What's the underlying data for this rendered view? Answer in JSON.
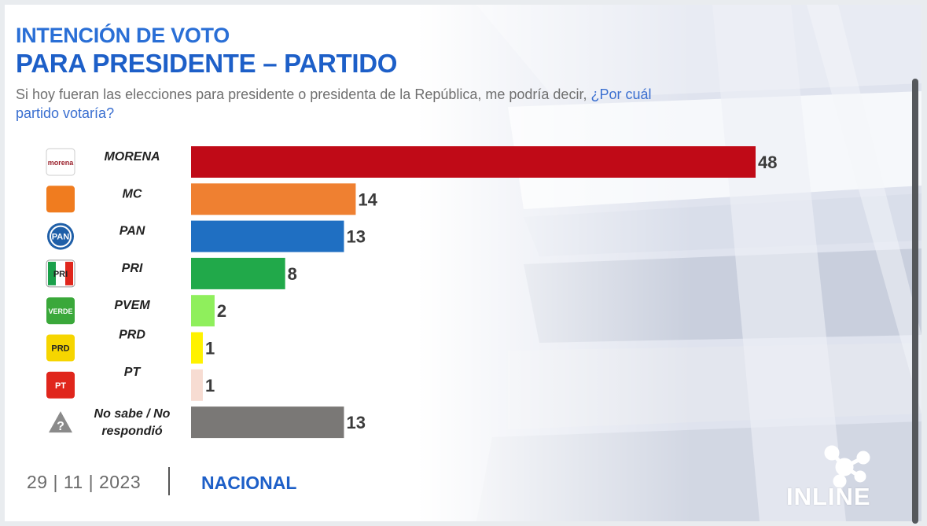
{
  "header": {
    "title_line1": "INTENCIÓN DE VOTO",
    "title_line2": "PARA PRESIDENTE – PARTIDO",
    "question_part1": "Si hoy fueran las elecciones para presidente o presidenta de la República, me podría decir, ",
    "question_part2": "¿Por  cuál partido votaría?"
  },
  "chart_data": {
    "type": "bar",
    "orientation": "horizontal",
    "categories": [
      "MORENA",
      "MC",
      "PAN",
      "PRI",
      "PVEM",
      "PRD",
      "PT",
      "No sabe / No respondió"
    ],
    "values": [
      48,
      14,
      13,
      8,
      2,
      1,
      1,
      13
    ],
    "bar_colors": [
      "#c00a17",
      "#ef8031",
      "#1f6fc2",
      "#21a94a",
      "#8fef5c",
      "#fff200",
      "#f7dcd2",
      "#7a7876"
    ],
    "value_labels": [
      "48",
      "14",
      "13",
      "8",
      "2",
      "1",
      "1",
      "13"
    ],
    "grid": false,
    "legend": "none"
  },
  "logos": [
    {
      "icon": "morena-logo",
      "text": "morena",
      "color": "#9a1f2a"
    },
    {
      "icon": "mc-logo",
      "text": "",
      "color": "#f07c1f"
    },
    {
      "icon": "pan-logo",
      "text": "PAN",
      "color": "#1f5fa8"
    },
    {
      "icon": "pri-logo",
      "text": "PRI",
      "color": "#1aa04a"
    },
    {
      "icon": "pvem-logo",
      "text": "VERDE",
      "color": "#3aa83a"
    },
    {
      "icon": "prd-logo",
      "text": "PRD",
      "color": "#f6d500"
    },
    {
      "icon": "pt-logo",
      "text": "PT",
      "color": "#e0261c"
    },
    {
      "icon": "question-icon",
      "text": "?",
      "color": "#8a8a8a"
    }
  ],
  "footer": {
    "date": "29 | 11 | 2023",
    "scope": "NACIONAL"
  },
  "brand": {
    "name": "INLINE"
  }
}
